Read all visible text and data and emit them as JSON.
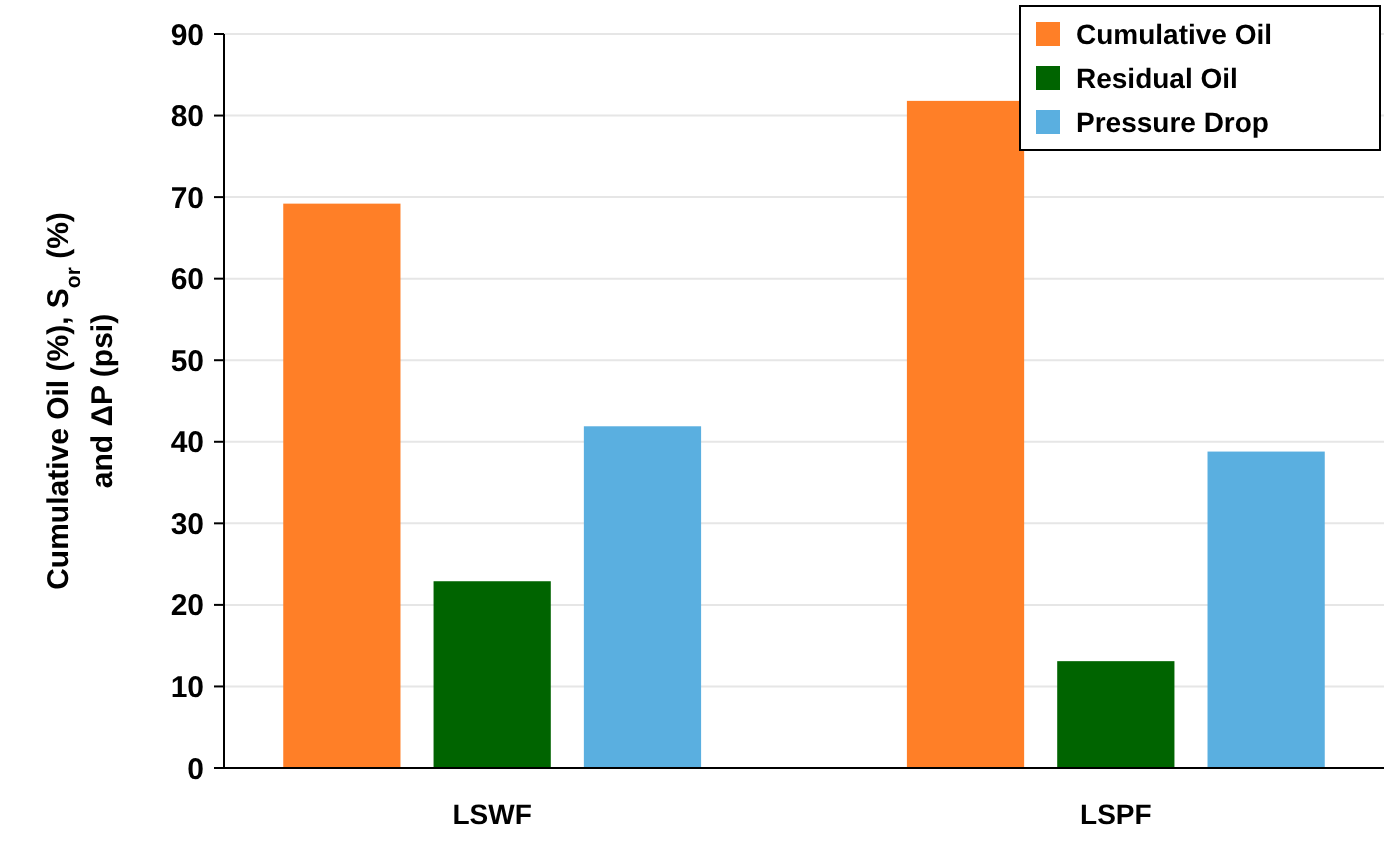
{
  "chart_data": {
    "type": "bar",
    "ylabel": "Cumulative Oil (%), S$_{or}$ (%)\nand ΔP (psi)",
    "categories": [
      "LSWF",
      "LSPF"
    ],
    "series": [
      {
        "name": "Cumulative Oil",
        "color": "#ff7f27",
        "values": [
          69.2,
          81.8
        ]
      },
      {
        "name": "Residual Oil",
        "color": "#006400",
        "values": [
          22.9,
          13.1
        ]
      },
      {
        "name": "Pressure Drop",
        "color": "#5aafe0",
        "values": [
          41.9,
          38.8
        ]
      }
    ],
    "ylim": [
      0,
      90
    ],
    "yticks": [
      0,
      10,
      20,
      30,
      40,
      50,
      60,
      70,
      80,
      90
    ],
    "grid": "y",
    "legend": "top right"
  }
}
